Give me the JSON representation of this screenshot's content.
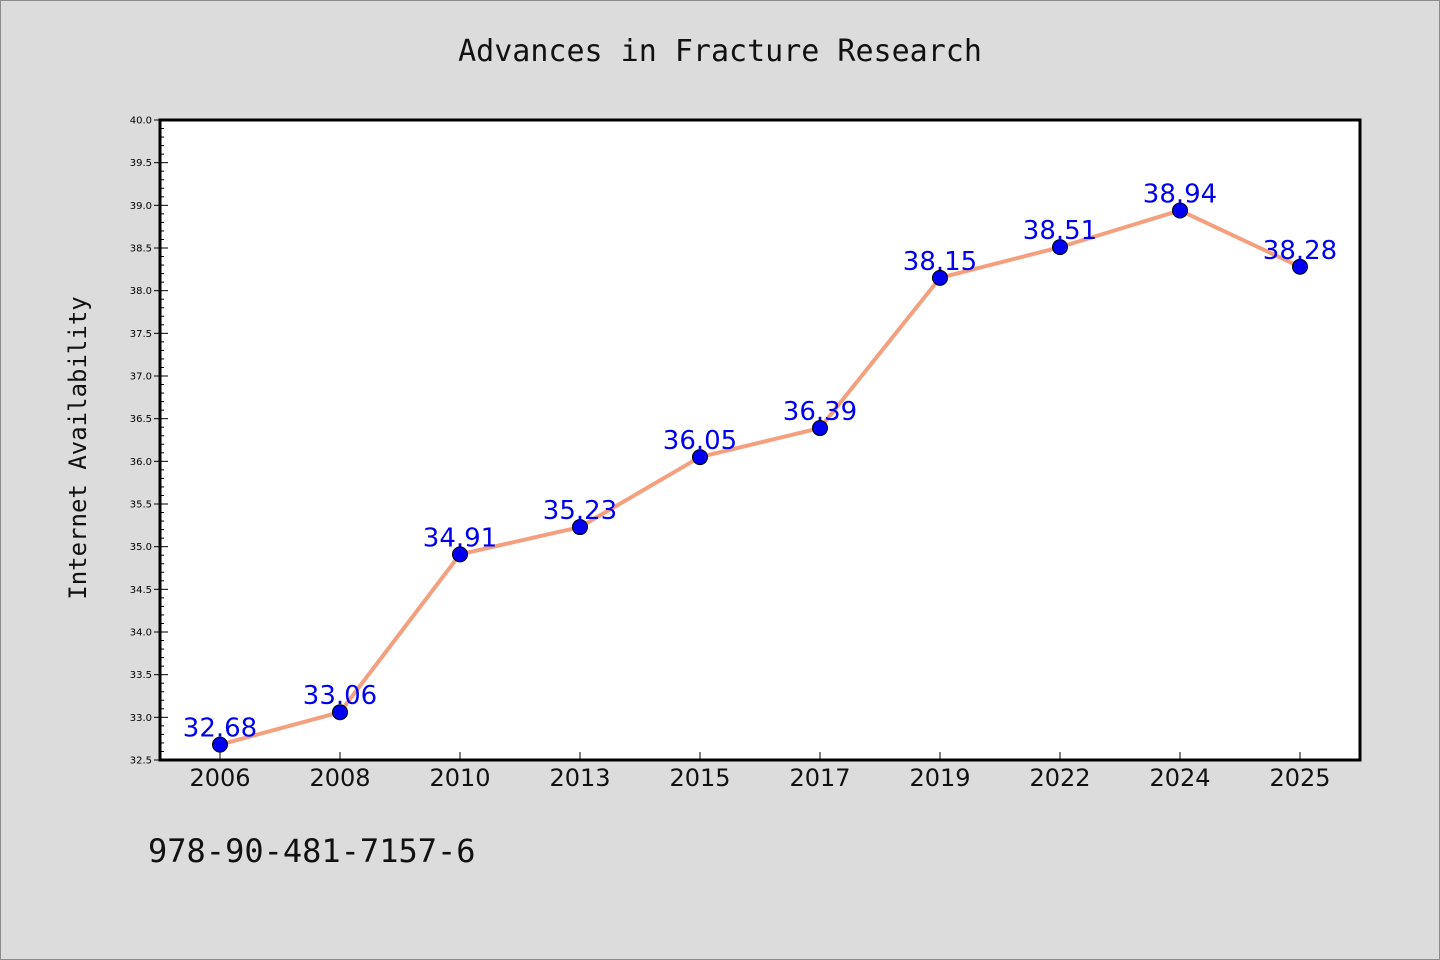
{
  "chart_data": {
    "type": "line",
    "title": "Advances in Fracture Research",
    "xlabel": "",
    "ylabel": "Internet Availability",
    "categories": [
      "2006",
      "2008",
      "2010",
      "2013",
      "2015",
      "2017",
      "2019",
      "2022",
      "2024",
      "2025"
    ],
    "values": [
      32.68,
      33.06,
      34.91,
      35.23,
      36.05,
      36.39,
      38.15,
      38.51,
      38.94,
      38.28
    ],
    "data_labels": [
      "32.68",
      "33.06",
      "34.91",
      "35.23",
      "36.05",
      "36.39",
      "38.15",
      "38.51",
      "38.94",
      "38.28"
    ],
    "ylim": [
      32.5,
      40.0
    ],
    "y_ticks": [
      "32.5",
      "33.0",
      "33.5",
      "34.0",
      "34.5",
      "35.0",
      "35.5",
      "36.0",
      "36.5",
      "37.0",
      "37.5",
      "38.0",
      "38.5",
      "39.0",
      "39.5",
      "40.0"
    ],
    "grid": false,
    "line_color": "#f4a07e",
    "marker_color": "#0000ee",
    "label_color": "#0000ee",
    "background_color": "#dcdcdc"
  },
  "footer": {
    "isbn": "978-90-481-7157-6"
  }
}
